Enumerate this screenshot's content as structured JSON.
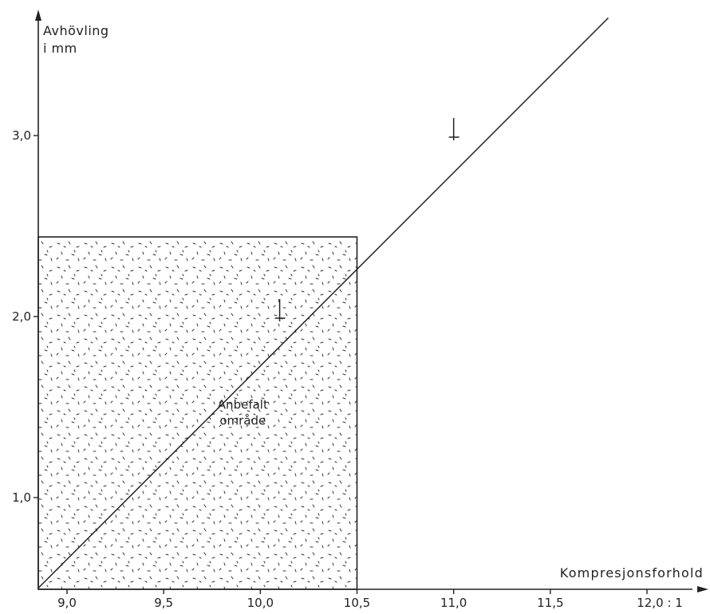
{
  "chart_data": {
    "type": "line",
    "title": "",
    "ylabel_lines": [
      "Avhövling",
      "i mm"
    ],
    "xlabel": "Kompresjonsforhold",
    "x_ticks": [
      {
        "value": 9.0,
        "label": "9,0"
      },
      {
        "value": 9.5,
        "label": "9,5"
      },
      {
        "value": 10.0,
        "label": "10,0"
      },
      {
        "value": 10.5,
        "label": "10,5"
      },
      {
        "value": 11.0,
        "label": "11,0"
      },
      {
        "value": 11.5,
        "label": "11,5"
      },
      {
        "value": 12.0,
        "label": "12,0 : 1"
      }
    ],
    "y_ticks": [
      {
        "value": 1.0,
        "label": "1,0"
      },
      {
        "value": 2.0,
        "label": "2,0"
      },
      {
        "value": 3.0,
        "label": "3,0"
      }
    ],
    "xlim": [
      8.8,
      12.2
    ],
    "ylim": [
      0.5,
      3.7
    ],
    "series": [
      {
        "x": [
          8.8,
          11.8
        ],
        "y": [
          0.5,
          3.65
        ]
      }
    ],
    "markers": [
      {
        "x": 10.1,
        "y": 2.0
      },
      {
        "x": 11.0,
        "y": 3.0
      }
    ],
    "region": {
      "x": [
        8.8,
        10.5
      ],
      "y": [
        0.5,
        2.44
      ],
      "label_lines": [
        "Anbefalt",
        "område"
      ],
      "label_at": {
        "x": 10.0,
        "y": 1.5
      }
    },
    "grid": false,
    "color": "#222222"
  }
}
